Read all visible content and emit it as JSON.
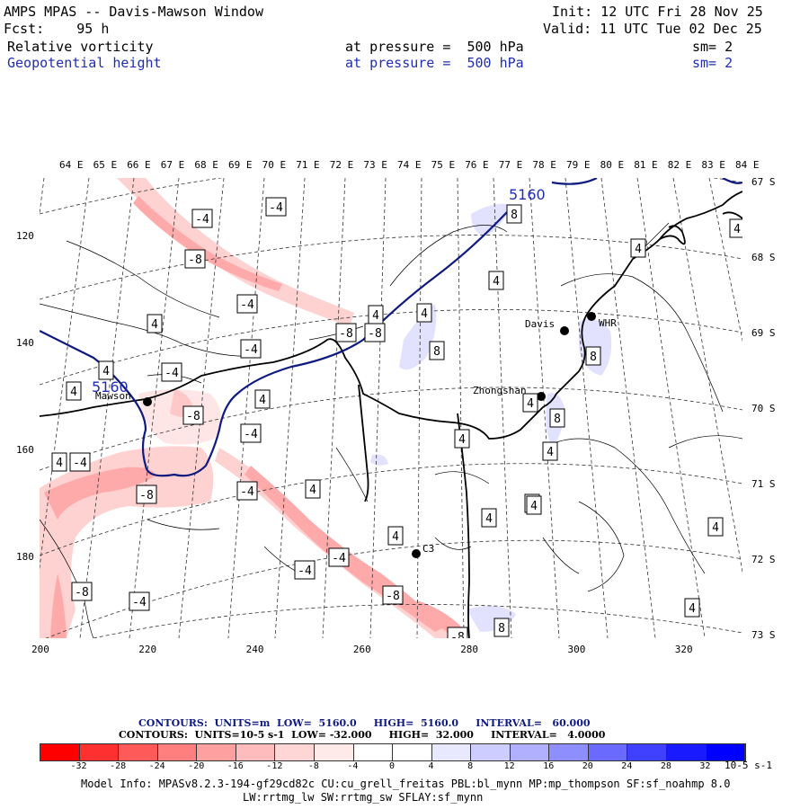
{
  "header": {
    "title": "AMPS MPAS -- Davis-Mawson Window",
    "forecast": "Fcst:    95 h",
    "init": "Init: 12 UTC Fri 28 Nov 25",
    "valid": "Valid: 11 UTC Tue 02 Dec 25",
    "field1": {
      "name": "Relative vorticity",
      "level": "at pressure =  500 hPa",
      "smooth": "sm= 2"
    },
    "field2": {
      "name": "Geopotential height",
      "level": "at pressure =  500 hPa",
      "smooth": "sm= 2"
    }
  },
  "lon_labels": [
    "64 E",
    "65 E",
    "66 E",
    "67 E",
    "68 E",
    "69 E",
    "70 E",
    "71 E",
    "72 E",
    "73 E",
    "74 E",
    "75 E",
    "76 E",
    "77 E",
    "78 E",
    "79 E",
    "80 E",
    "81 E",
    "82 E",
    "83 E",
    "84 E"
  ],
  "lat_labels": [
    "67 S",
    "68 S",
    "69 S",
    "70 S",
    "71 S",
    "72 S",
    "73 S"
  ],
  "y_ticks": [
    "120",
    "140",
    "160",
    "180"
  ],
  "x_ticks": [
    "200",
    "220",
    "240",
    "260",
    "280",
    "300",
    "320"
  ],
  "stations": [
    "Mawson",
    "Davis",
    "WHR",
    "Zhongshan",
    "C3"
  ],
  "contour_boxes": [
    "-4",
    "-4",
    "-4",
    "-8",
    "-4",
    "-4",
    "-8",
    "-4",
    "-4",
    "-8",
    "-4",
    "-8",
    "-8",
    "-4",
    "-4",
    "-4",
    "-8",
    "-4",
    "-8",
    "-8",
    "4",
    "4",
    "4",
    "4",
    "8",
    "4",
    "4",
    "4",
    "4",
    "4",
    "4",
    "8",
    "8",
    "8",
    "4",
    "4",
    "4",
    "4",
    "4",
    "4",
    "8",
    "4",
    "4",
    "4",
    "4"
  ],
  "height_labels": [
    "5160",
    "5160"
  ],
  "colorbar": {
    "contours_line1": "CONTOURS:  UNITS=m  LOW=  5160.0     HIGH=  5160.0     INTERVAL=   60.000",
    "contours_line2": "CONTOURS:  UNITS=10-5 s-1  LOW= -32.000     HIGH=  32.000     INTERVAL=   4.0000",
    "labels": [
      "-32",
      "-28",
      "-24",
      "-20",
      "-16",
      "-12",
      "-8",
      "-4",
      "0",
      "4",
      "8",
      "12",
      "16",
      "20",
      "24",
      "28",
      "32"
    ],
    "unit": "10-5 s-1",
    "colors": [
      "#ff0000",
      "#ff3030",
      "#ff5a5a",
      "#ff7f7f",
      "#ffa0a0",
      "#ffbcbc",
      "#ffd6d6",
      "#ffeaea",
      "#ffffff",
      "#ffffff",
      "#e8e8ff",
      "#cdcdff",
      "#b0b0ff",
      "#8e8eff",
      "#6a6aff",
      "#4040ff",
      "#1a1aff",
      "#0000ff"
    ]
  },
  "model_info": {
    "line1": "Model Info: MPASv8.2.3-194-gf29cd82c CU:cu_grell_freitas PBL:bl_mynn MP:mp_thompson SF:sf_noahmp 8.0",
    "line2": "LW:rrtmg_lw SW:rrtmg_sw SFLAY:sf_mynn"
  }
}
